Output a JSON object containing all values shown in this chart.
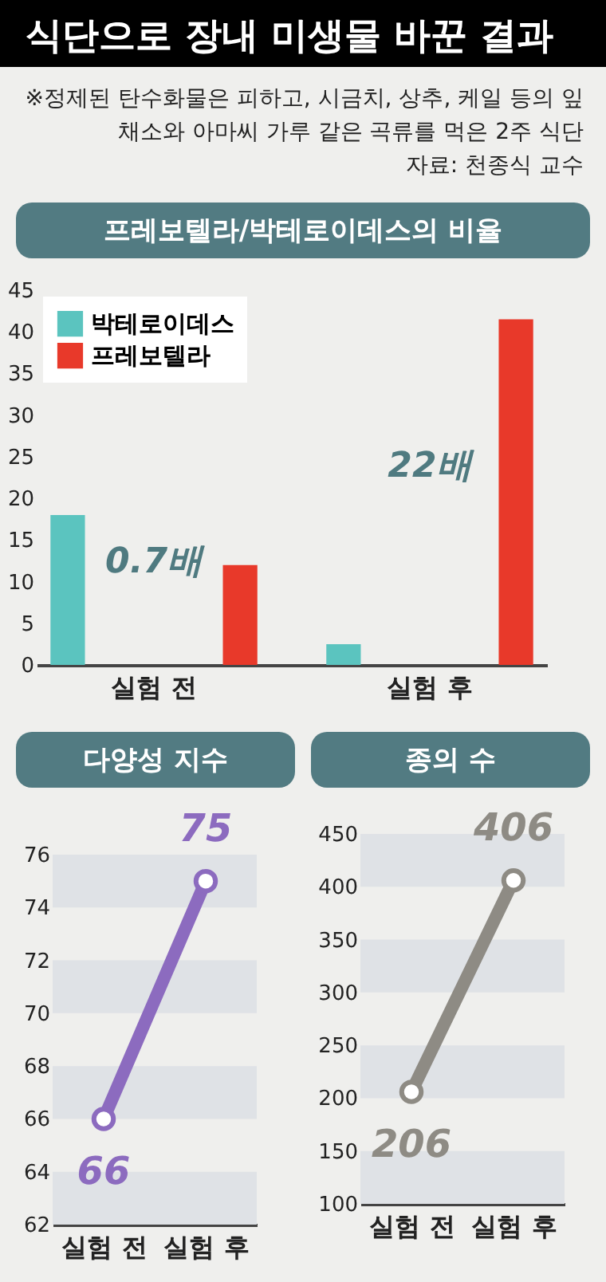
{
  "chart_data": [
    {
      "type": "bar",
      "title": "식단으로 장내 미생물 바꾼 결과",
      "subtitle": "프레보텔라/박테로이데스의 비율",
      "annotations": [
        "※정제된 탄수화물은 피하고, 시금치, 상추, 케일 등의 잎채소와 아마씨 가루 같은 곡류를 먹은 2주 식단",
        "자료: 천종식 교수",
        "0.7배",
        "22배"
      ],
      "categories": [
        "실험 전",
        "실험 후"
      ],
      "series": [
        {
          "name": "박테로이데스",
          "color": "#5bc4bf",
          "values": [
            18,
            2.5
          ]
        },
        {
          "name": "프레보텔라",
          "color": "#e8392a",
          "values": [
            12,
            41.5
          ]
        }
      ],
      "ylim": [
        0,
        45
      ],
      "yticks": [
        0,
        5,
        10,
        15,
        20,
        25,
        30,
        35,
        40,
        45
      ],
      "legend": "top left"
    },
    {
      "type": "line",
      "title": "다양성 지수",
      "categories": [
        "실험 전",
        "실험 후"
      ],
      "series": [
        {
          "color": "#8c6bbf",
          "values": [
            66,
            75
          ]
        }
      ],
      "ylim": [
        62,
        76
      ],
      "yticks": [
        62,
        64,
        66,
        68,
        70,
        72,
        74,
        76
      ],
      "bands": [
        {
          "axis": "y",
          "from": 62,
          "to": 64,
          "color": "#dfe2e6"
        },
        {
          "axis": "y",
          "from": 66,
          "to": 68,
          "color": "#dfe2e6"
        },
        {
          "axis": "y",
          "from": 70,
          "to": 72,
          "color": "#dfe2e6"
        },
        {
          "axis": "y",
          "from": 74,
          "to": 76,
          "color": "#dfe2e6"
        }
      ],
      "marker": "circle",
      "line_style": "solid",
      "data_labels": true
    },
    {
      "type": "line",
      "title": "종의 수",
      "categories": [
        "실험 전",
        "실험 후"
      ],
      "series": [
        {
          "color": "#8e8b84",
          "values": [
            206,
            406
          ]
        }
      ],
      "ylim": [
        100,
        450
      ],
      "yticks": [
        100,
        150,
        200,
        250,
        300,
        350,
        400,
        450
      ],
      "bands": [
        {
          "axis": "y",
          "from": 100,
          "to": 150,
          "color": "#dfe2e6"
        },
        {
          "axis": "y",
          "from": 200,
          "to": 250,
          "color": "#dfe2e6"
        },
        {
          "axis": "y",
          "from": 300,
          "to": 350,
          "color": "#dfe2e6"
        },
        {
          "axis": "y",
          "from": 400,
          "to": 450,
          "color": "#dfe2e6"
        }
      ],
      "marker": "circle",
      "line_style": "solid",
      "data_labels": true
    }
  ]
}
